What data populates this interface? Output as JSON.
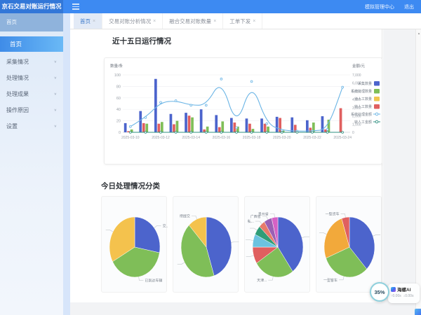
{
  "icons": {
    "close": "×",
    "chevron_down": "∨",
    "scroll_up": "▲"
  },
  "topbar": {
    "title": "京石交易对账运行情况",
    "links": [
      {
        "label": "模拟管理中心"
      },
      {
        "label": "退出"
      }
    ]
  },
  "sidebar": {
    "header": "首页",
    "active_item": "首页",
    "items": [
      {
        "label": "采集情况"
      },
      {
        "label": "处理情况"
      },
      {
        "label": "处理成果"
      },
      {
        "label": "操作原因"
      },
      {
        "label": "设置"
      }
    ]
  },
  "tabs": [
    {
      "label": "首页",
      "active": true
    },
    {
      "label": "交易对账分析情况"
    },
    {
      "label": "融合交易对账数量"
    },
    {
      "label": "工单下发"
    }
  ],
  "sections": {
    "run_chart_title": "近十五日运行情况",
    "pies_title": "今日处理情况分类"
  },
  "widget": {
    "percent": "35%",
    "title": "海螺AI",
    "stat_up": "↑0.00s",
    "stat_down": "↓0.00s"
  },
  "chart_data": [
    {
      "type": "bar",
      "title": "近十五日运行情况",
      "categories": [
        "2025-03-10",
        "2025-03-11",
        "2025-03-12",
        "2025-03-13",
        "2025-03-14",
        "2025-03-15",
        "2025-03-16",
        "2025-03-17",
        "2025-03-18",
        "2025-03-19",
        "2025-03-20",
        "2025-03-21",
        "2025-03-22",
        "2025-03-23",
        "2025-03-24"
      ],
      "x_label_every": 2,
      "left_axis": {
        "name": "数量/条",
        "min": 0,
        "max": 100,
        "step": 20
      },
      "right_axis": {
        "name": "金额/元",
        "min": 0,
        "max": 7000,
        "step": 1000
      },
      "bars": [
        {
          "name": "采集数量",
          "color": "#4c64cc",
          "values": [
            16,
            37,
            93,
            32,
            34,
            40,
            30,
            25,
            24,
            24,
            27,
            26,
            21,
            28,
            0
          ]
        },
        {
          "name": "转人工数量",
          "color": "#e05f5f",
          "values": [
            2,
            16,
            15,
            14,
            29,
            5,
            9,
            17,
            15,
            15,
            25,
            13,
            8,
            5,
            42
          ]
        },
        {
          "name": "系统处理数量",
          "color": "#7fbe58",
          "values": [
            5,
            15,
            18,
            20,
            26,
            10,
            19,
            10,
            6,
            10,
            3,
            0,
            17,
            22,
            0
          ]
        },
        {
          "name": "待人工数量",
          "color": "#f0c64f",
          "values": [
            0,
            0,
            0,
            0,
            0,
            0,
            0,
            0,
            0,
            0,
            0,
            0,
            0,
            0,
            0
          ]
        }
      ],
      "lines": [
        {
          "name": "系统处理金额",
          "color": "#69b4e5",
          "values": [
            700,
            1800,
            3650,
            3850,
            3300,
            3300,
            6500,
            550,
            6200,
            1050,
            250,
            150,
            150,
            350,
            5500
          ]
        },
        {
          "name": "转人工金额",
          "color": "#2e8f80",
          "values": [
            0,
            0,
            0,
            0,
            0,
            0,
            0,
            0,
            0,
            0,
            0,
            0,
            0,
            0,
            0
          ]
        }
      ],
      "legend": [
        {
          "name": "采集数量",
          "type": "bar",
          "color": "#4c64cc"
        },
        {
          "name": "系统处理数量",
          "type": "bar",
          "color": "#7fbe58"
        },
        {
          "name": "待人工数量",
          "type": "bar",
          "color": "#f0c64f"
        },
        {
          "name": "转人工数量",
          "type": "bar",
          "color": "#e05f5f"
        },
        {
          "name": "系统处理金额",
          "type": "line",
          "color": "#69b4e5"
        },
        {
          "name": "转人工金额",
          "type": "line",
          "color": "#2e8f80"
        }
      ],
      "legend_position": "right-overlap",
      "grid": true
    },
    {
      "type": "pie",
      "slices": [
        {
          "name": "交...",
          "value": 28,
          "color": "#4c64cc"
        },
        {
          "name": "已到达车辆",
          "value": 39,
          "color": "#7fbe58"
        },
        {
          "name": "",
          "value": 33,
          "color": "#f4c24d"
        }
      ]
    },
    {
      "type": "pie",
      "slices": [
        {
          "name": "",
          "value": 45,
          "color": "#4c64cc"
        },
        {
          "name": "",
          "value": 43,
          "color": "#7fbe58"
        },
        {
          "name": "待提交",
          "value": 12,
          "color": "#f4c24d"
        }
      ]
    },
    {
      "type": "pie",
      "slices": [
        {
          "name": "",
          "value": 40,
          "color": "#4c64cc"
        },
        {
          "name": "天津...",
          "value": 26,
          "color": "#7fbe58"
        },
        {
          "name": "河南省",
          "value": 9,
          "color": "#e05f5f"
        },
        {
          "name": "",
          "value": 7,
          "color": "#6cc3e0"
        },
        {
          "name": "",
          "value": 5,
          "color": "#2f9d77"
        },
        {
          "name": "私...",
          "value": 4,
          "color": "#e87a6a"
        },
        {
          "name": "广西省",
          "value": 5,
          "color": "#9a60b4"
        },
        {
          "name": "贵州省",
          "value": 4,
          "color": "#d661c5"
        }
      ]
    },
    {
      "type": "pie",
      "slices": [
        {
          "name": "",
          "value": 38,
          "color": "#4c64cc"
        },
        {
          "name": "一型客车",
          "value": 31,
          "color": "#7fbe58"
        },
        {
          "name": "",
          "value": 26,
          "color": "#f2a93b"
        },
        {
          "name": "一型货车",
          "value": 5,
          "color": "#e05f5f"
        }
      ]
    }
  ]
}
